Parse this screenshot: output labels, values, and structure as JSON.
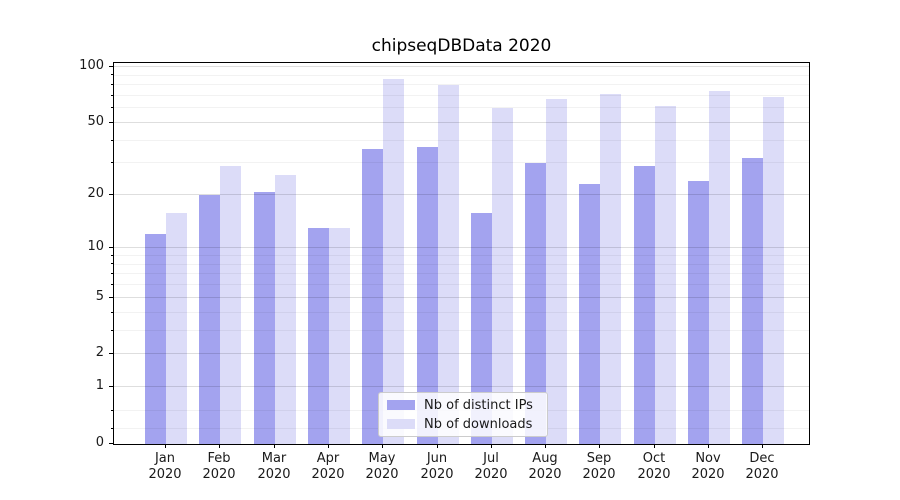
{
  "title": "chipseqDBData 2020",
  "colors": {
    "ips_bar": "#a3a3ef",
    "downloads_bar": "#dcdcf8",
    "grid_major": "rgba(0,0,0,0.13)",
    "grid_minor": "rgba(0,0,0,0.05)",
    "frame": "#000000",
    "text": "#1a1a1a",
    "legend_bg": "rgba(255,255,255,0.85)",
    "legend_border": "#cccccc"
  },
  "legend": {
    "items": [
      {
        "key": "ips",
        "label": "Nb of distinct IPs",
        "color": "#a3a3ef"
      },
      {
        "key": "downloads",
        "label": "Nb of downloads",
        "color": "#dcdcf8"
      }
    ]
  },
  "chart_data": {
    "type": "bar",
    "title": "chipseqDBData 2020",
    "categories": [
      "Jan",
      "Feb",
      "Mar",
      "Apr",
      "May",
      "Jun",
      "Jul",
      "Aug",
      "Sep",
      "Oct",
      "Nov",
      "Dec"
    ],
    "category_sublabel": "2020",
    "series": [
      {
        "name": "Nb of distinct IPs",
        "values": [
          12,
          20,
          21,
          13,
          36,
          37,
          16,
          30,
          23,
          29,
          24,
          32
        ]
      },
      {
        "name": "Nb of downloads",
        "values": [
          16,
          29,
          26,
          13,
          86,
          80,
          60,
          67,
          72,
          62,
          74,
          69
        ]
      }
    ],
    "yscale": "log1p",
    "ylim": [
      0,
      105
    ],
    "yticks": [
      0,
      1,
      2,
      5,
      10,
      20,
      50,
      100
    ],
    "minor_gridlines": [
      0.2,
      0.5,
      3,
      4,
      6,
      7,
      8,
      9,
      30,
      40,
      60,
      70,
      80,
      90
    ],
    "grid": true,
    "legend_position": "lower center"
  }
}
